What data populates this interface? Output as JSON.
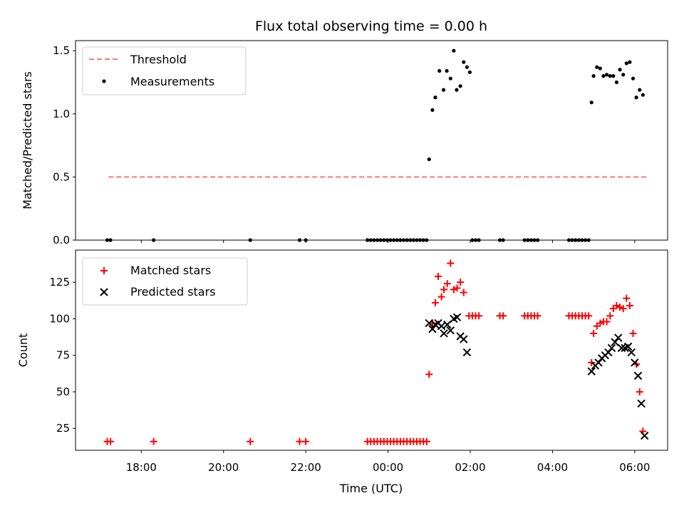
{
  "chart_data": {
    "title": "Flux total observing time = 0.00 h",
    "xlabel": "Time (UTC)",
    "x_tick_labels": [
      "18:00",
      "20:00",
      "22:00",
      "00:00",
      "02:00",
      "04:00",
      "06:00"
    ],
    "x_unit": "hours since 00:00 UTC (negative = previous day)",
    "xlim": [
      -7.6,
      6.8
    ],
    "panels": [
      {
        "type": "scatter",
        "ylabel": "Matched/Predicted stars",
        "ylim": [
          0,
          1.58
        ],
        "yticks": [
          "0.0",
          "0.5",
          "1.0",
          "1.5"
        ],
        "legend": "upper left",
        "threshold": {
          "name": "Threshold",
          "value": 0.5,
          "x_range": [
            -6.8,
            6.3
          ],
          "color": "#ff7777"
        },
        "series": [
          {
            "name": "Measurements",
            "color": "#000000",
            "points": [
              [
                -6.83,
                0
              ],
              [
                -6.75,
                0
              ],
              [
                -5.7,
                0
              ],
              [
                -3.35,
                0
              ],
              [
                -2.15,
                0
              ],
              [
                -2.0,
                0
              ],
              [
                -0.5,
                0
              ],
              [
                -0.42,
                0
              ],
              [
                -0.34,
                0
              ],
              [
                -0.26,
                0
              ],
              [
                -0.18,
                0
              ],
              [
                -0.1,
                0
              ],
              [
                -0.02,
                0
              ],
              [
                0.06,
                0
              ],
              [
                0.14,
                0
              ],
              [
                0.22,
                0
              ],
              [
                0.3,
                0
              ],
              [
                0.38,
                0
              ],
              [
                0.46,
                0
              ],
              [
                0.54,
                0
              ],
              [
                0.62,
                0
              ],
              [
                0.7,
                0
              ],
              [
                0.78,
                0
              ],
              [
                0.86,
                0
              ],
              [
                0.94,
                0
              ],
              [
                1.0,
                0.64
              ],
              [
                1.08,
                1.03
              ],
              [
                1.15,
                1.13
              ],
              [
                1.25,
                1.34
              ],
              [
                1.35,
                1.19
              ],
              [
                1.43,
                1.34
              ],
              [
                1.52,
                1.28
              ],
              [
                1.6,
                1.5
              ],
              [
                1.67,
                1.19
              ],
              [
                1.76,
                1.22
              ],
              [
                1.84,
                1.41
              ],
              [
                1.92,
                1.37
              ],
              [
                1.99,
                1.33
              ],
              [
                2.05,
                0
              ],
              [
                2.13,
                0
              ],
              [
                2.21,
                0
              ],
              [
                2.72,
                0
              ],
              [
                2.8,
                0
              ],
              [
                3.32,
                0
              ],
              [
                3.4,
                0
              ],
              [
                3.48,
                0
              ],
              [
                3.56,
                0
              ],
              [
                3.64,
                0
              ],
              [
                4.4,
                0
              ],
              [
                4.48,
                0
              ],
              [
                4.56,
                0
              ],
              [
                4.64,
                0
              ],
              [
                4.72,
                0
              ],
              [
                4.8,
                0
              ],
              [
                4.88,
                0
              ],
              [
                4.95,
                1.09
              ],
              [
                5.0,
                1.3
              ],
              [
                5.08,
                1.37
              ],
              [
                5.16,
                1.36
              ],
              [
                5.24,
                1.3
              ],
              [
                5.32,
                1.31
              ],
              [
                5.4,
                1.3
              ],
              [
                5.48,
                1.3
              ],
              [
                5.56,
                1.25
              ],
              [
                5.64,
                1.35
              ],
              [
                5.72,
                1.31
              ],
              [
                5.8,
                1.4
              ],
              [
                5.88,
                1.41
              ],
              [
                5.96,
                1.28
              ],
              [
                6.04,
                1.13
              ],
              [
                6.12,
                1.19
              ],
              [
                6.2,
                1.15
              ]
            ]
          }
        ]
      },
      {
        "type": "scatter",
        "ylabel": "Count",
        "ylim": [
          10,
          147
        ],
        "yticks": [
          "25",
          "50",
          "75",
          "100",
          "125"
        ],
        "legend": "upper left",
        "series": [
          {
            "name": "Matched stars",
            "marker": "plus",
            "color": "#ff0000",
            "points": [
              [
                -6.83,
                16
              ],
              [
                -6.75,
                16
              ],
              [
                -5.7,
                16
              ],
              [
                -3.35,
                16
              ],
              [
                -2.15,
                16
              ],
              [
                -2.0,
                16
              ],
              [
                -0.5,
                16
              ],
              [
                -0.42,
                16
              ],
              [
                -0.34,
                16
              ],
              [
                -0.26,
                16
              ],
              [
                -0.18,
                16
              ],
              [
                -0.1,
                16
              ],
              [
                -0.02,
                16
              ],
              [
                0.06,
                16
              ],
              [
                0.14,
                16
              ],
              [
                0.22,
                16
              ],
              [
                0.3,
                16
              ],
              [
                0.38,
                16
              ],
              [
                0.46,
                16
              ],
              [
                0.54,
                16
              ],
              [
                0.62,
                16
              ],
              [
                0.7,
                16
              ],
              [
                0.78,
                16
              ],
              [
                0.86,
                16
              ],
              [
                0.94,
                16
              ],
              [
                1.0,
                62
              ],
              [
                1.08,
                97
              ],
              [
                1.15,
                111
              ],
              [
                1.22,
                129
              ],
              [
                1.3,
                115
              ],
              [
                1.36,
                120
              ],
              [
                1.44,
                124
              ],
              [
                1.52,
                138
              ],
              [
                1.6,
                120
              ],
              [
                1.68,
                121
              ],
              [
                1.76,
                125
              ],
              [
                1.84,
                118
              ],
              [
                1.97,
                102
              ],
              [
                2.05,
                102
              ],
              [
                2.13,
                102
              ],
              [
                2.21,
                102
              ],
              [
                2.72,
                102
              ],
              [
                2.8,
                102
              ],
              [
                3.32,
                102
              ],
              [
                3.4,
                102
              ],
              [
                3.48,
                102
              ],
              [
                3.56,
                102
              ],
              [
                3.64,
                102
              ],
              [
                4.4,
                102
              ],
              [
                4.48,
                102
              ],
              [
                4.56,
                102
              ],
              [
                4.64,
                102
              ],
              [
                4.72,
                102
              ],
              [
                4.8,
                102
              ],
              [
                4.88,
                102
              ],
              [
                4.95,
                70
              ],
              [
                5.0,
                90
              ],
              [
                5.08,
                95
              ],
              [
                5.16,
                97
              ],
              [
                5.24,
                98
              ],
              [
                5.32,
                98
              ],
              [
                5.4,
                102
              ],
              [
                5.48,
                107
              ],
              [
                5.56,
                109
              ],
              [
                5.64,
                108
              ],
              [
                5.72,
                107
              ],
              [
                5.8,
                114
              ],
              [
                5.88,
                109
              ],
              [
                5.96,
                90
              ],
              [
                6.04,
                69
              ],
              [
                6.12,
                50
              ],
              [
                6.2,
                23
              ]
            ]
          },
          {
            "name": "Predicted stars",
            "marker": "x",
            "color": "#000000",
            "points": [
              [
                1.0,
                97
              ],
              [
                1.08,
                93
              ],
              [
                1.15,
                96
              ],
              [
                1.22,
                97
              ],
              [
                1.3,
                95
              ],
              [
                1.36,
                90
              ],
              [
                1.44,
                96
              ],
              [
                1.52,
                92
              ],
              [
                1.6,
                100
              ],
              [
                1.68,
                101
              ],
              [
                1.76,
                88
              ],
              [
                1.84,
                86
              ],
              [
                1.92,
                77
              ],
              [
                4.95,
                64
              ],
              [
                5.04,
                68
              ],
              [
                5.12,
                70
              ],
              [
                5.2,
                73
              ],
              [
                5.28,
                75
              ],
              [
                5.36,
                77
              ],
              [
                5.44,
                80
              ],
              [
                5.52,
                84
              ],
              [
                5.6,
                87
              ],
              [
                5.68,
                80
              ],
              [
                5.76,
                80
              ],
              [
                5.84,
                81
              ],
              [
                5.92,
                77
              ],
              [
                6.0,
                70
              ],
              [
                6.08,
                61
              ],
              [
                6.16,
                42
              ],
              [
                6.24,
                20
              ]
            ]
          }
        ]
      }
    ]
  }
}
